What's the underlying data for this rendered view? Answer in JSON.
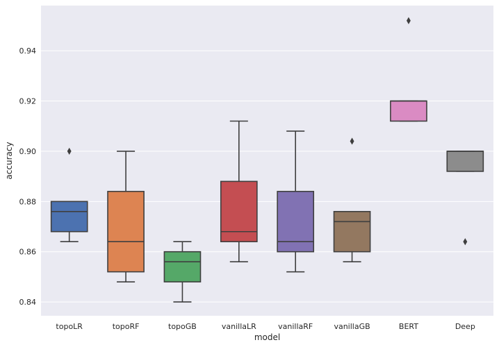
{
  "chart_data": {
    "type": "box",
    "title": "",
    "xlabel": "model",
    "ylabel": "accuracy",
    "ylim": [
      0.8345,
      0.958
    ],
    "yticks": [
      0.84,
      0.86,
      0.88,
      0.9,
      0.92,
      0.94
    ],
    "ytick_labels": [
      "0.84",
      "0.86",
      "0.88",
      "0.90",
      "0.92",
      "0.94"
    ],
    "grid": true,
    "categories": [
      "topoLR",
      "topoRF",
      "topoGB",
      "vanillaLR",
      "vanillaRF",
      "vanillaGB",
      "BERT",
      "Deep"
    ],
    "boxes": [
      {
        "name": "topoLR",
        "color": "#4c72b0",
        "whisker_low": 0.864,
        "q1": 0.868,
        "median": 0.876,
        "q3": 0.88,
        "whisker_high": 0.88,
        "outliers": [
          0.9
        ]
      },
      {
        "name": "topoRF",
        "color": "#dd8452",
        "whisker_low": 0.848,
        "q1": 0.852,
        "median": 0.864,
        "q3": 0.884,
        "whisker_high": 0.9,
        "outliers": []
      },
      {
        "name": "topoGB",
        "color": "#55a868",
        "whisker_low": 0.84,
        "q1": 0.848,
        "median": 0.856,
        "q3": 0.86,
        "whisker_high": 0.864,
        "outliers": []
      },
      {
        "name": "vanillaLR",
        "color": "#c44e52",
        "whisker_low": 0.856,
        "q1": 0.864,
        "median": 0.868,
        "q3": 0.888,
        "whisker_high": 0.912,
        "outliers": []
      },
      {
        "name": "vanillaRF",
        "color": "#8172b3",
        "whisker_low": 0.852,
        "q1": 0.86,
        "median": 0.864,
        "q3": 0.884,
        "whisker_high": 0.908,
        "outliers": []
      },
      {
        "name": "vanillaGB",
        "color": "#937860",
        "whisker_low": 0.856,
        "q1": 0.86,
        "median": 0.872,
        "q3": 0.876,
        "whisker_high": 0.876,
        "outliers": [
          0.904
        ]
      },
      {
        "name": "BERT",
        "color": "#da8bc3",
        "whisker_low": 0.912,
        "q1": 0.912,
        "median": 0.92,
        "q3": 0.92,
        "whisker_high": 0.92,
        "outliers": [
          0.952
        ]
      },
      {
        "name": "Deep",
        "color": "#8c8c8c",
        "whisker_low": 0.892,
        "q1": 0.892,
        "median": 0.9,
        "q3": 0.9,
        "whisker_high": 0.9,
        "outliers": [
          0.864
        ]
      }
    ]
  },
  "style": {
    "plot_background": "#eaeaf2",
    "grid_color": "#ffffff",
    "line_color": "#3f3f3f"
  }
}
